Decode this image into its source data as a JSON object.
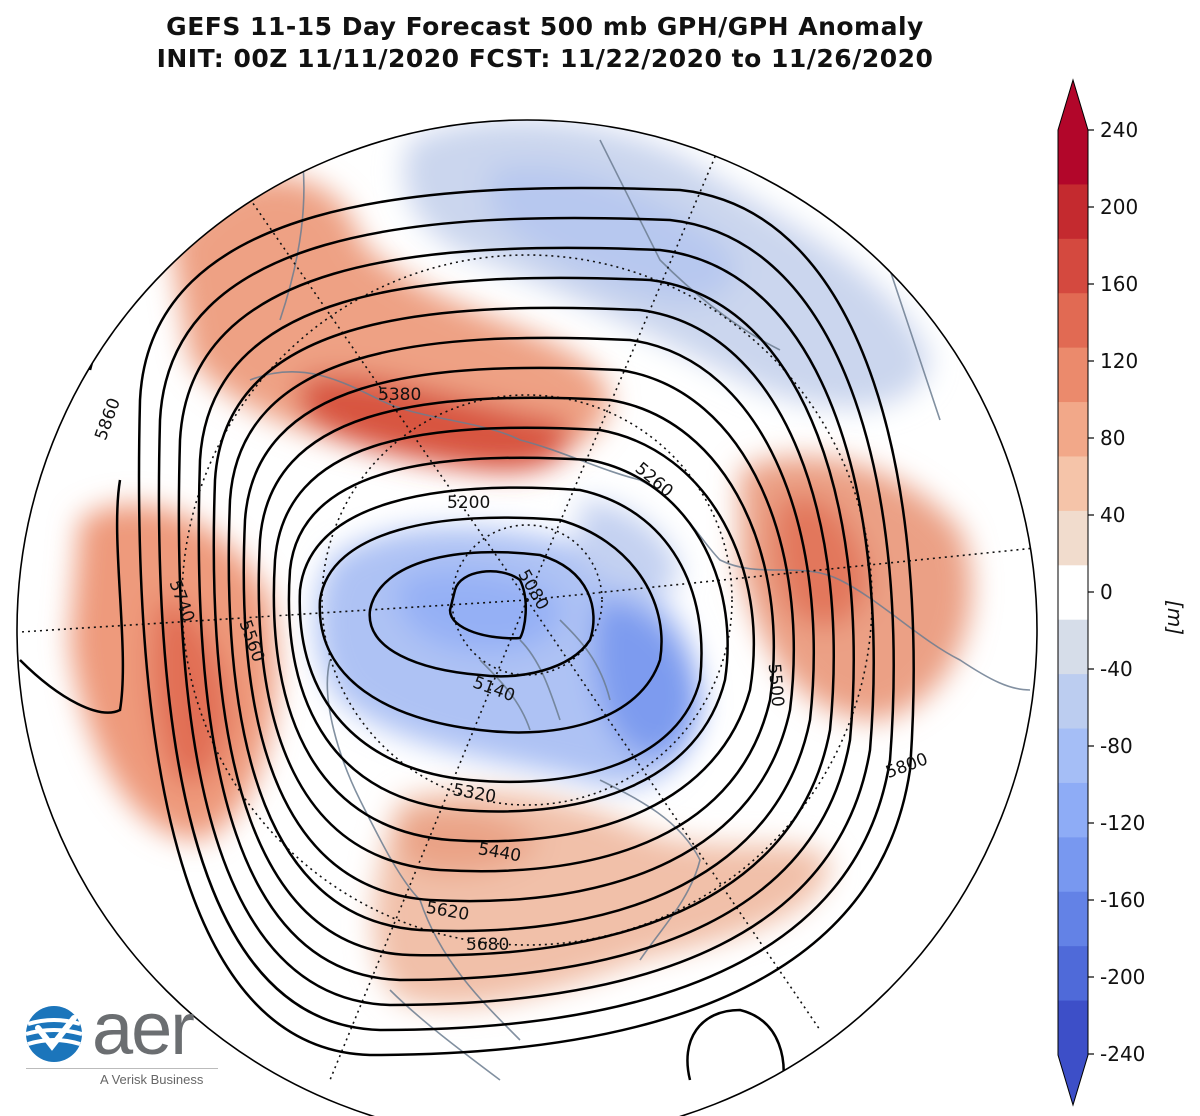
{
  "title": {
    "line1": "GEFS 11-15 Day Forecast 500 mb GPH/GPH Anomaly",
    "line2": "INIT: 00Z 11/11/2020    FCST: 11/22/2020 to 11/26/2020"
  },
  "map": {
    "projection": "north-polar-stereographic",
    "contour_labels": [
      "5860",
      "5740",
      "5560",
      "5380",
      "5200",
      "5080",
      "5260",
      "5140",
      "5320",
      "5440",
      "5500",
      "5620",
      "5680",
      "5800"
    ]
  },
  "colorbar": {
    "unit": "[m]",
    "ticks": [
      "240",
      "200",
      "160",
      "120",
      "80",
      "40",
      "0",
      "-40",
      "-80",
      "-120",
      "-160",
      "-200",
      "-240"
    ],
    "colors": [
      "#b2062a",
      "#c42a2f",
      "#d4493f",
      "#e16a53",
      "#eb8a6c",
      "#f2a889",
      "#f5c4a9",
      "#f1dccd",
      "#ffffff",
      "#d6dde9",
      "#bccdf0",
      "#a5bef6",
      "#8eacf6",
      "#7898f0",
      "#6382e6",
      "#4f6ad9",
      "#3d4fc8"
    ],
    "positive_color": "#e8856a",
    "negative_color": "#8aa6f0"
  },
  "logo": {
    "name": "aer",
    "tagline": "A Verisk Business"
  }
}
